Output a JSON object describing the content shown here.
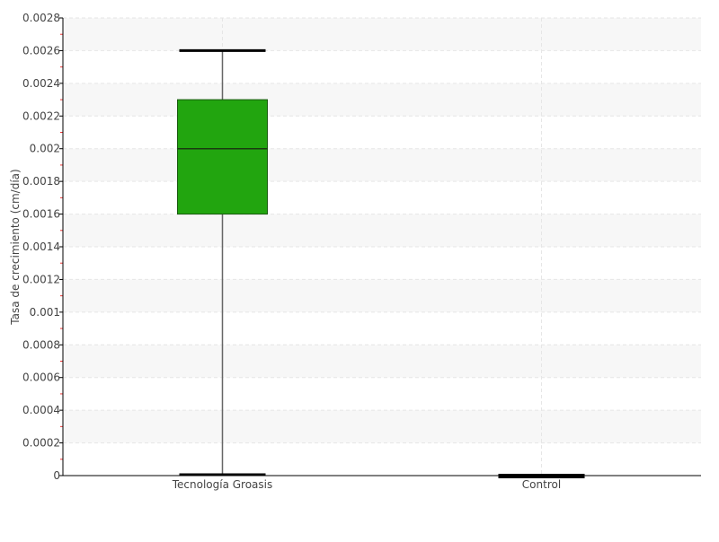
{
  "chart_data": {
    "type": "boxplot",
    "title": "",
    "xlabel": "",
    "ylabel": "Tasa de crecimiento (cm/día)",
    "ylim": [
      0,
      0.0028
    ],
    "yticks": [
      "0",
      "0.0002",
      "0.0004",
      "0.0006",
      "0.0008",
      "0.001",
      "0.0012",
      "0.0014",
      "0.0016",
      "0.0018",
      "0.002",
      "0.0022",
      "0.0024",
      "0.0026",
      "0.0028"
    ],
    "grid": true,
    "categories": [
      "Tecnología Groasis",
      "Control"
    ],
    "boxes": [
      {
        "category": "Tecnología Groasis",
        "min": 0,
        "q1": 0.0016,
        "median": 0.002,
        "q3": 0.0023,
        "max": 0.0026,
        "color": "#22a50f"
      },
      {
        "category": "Control",
        "min": 0,
        "q1": 0,
        "median": 0,
        "q3": 0,
        "max": 0,
        "color": "#000000"
      }
    ]
  }
}
